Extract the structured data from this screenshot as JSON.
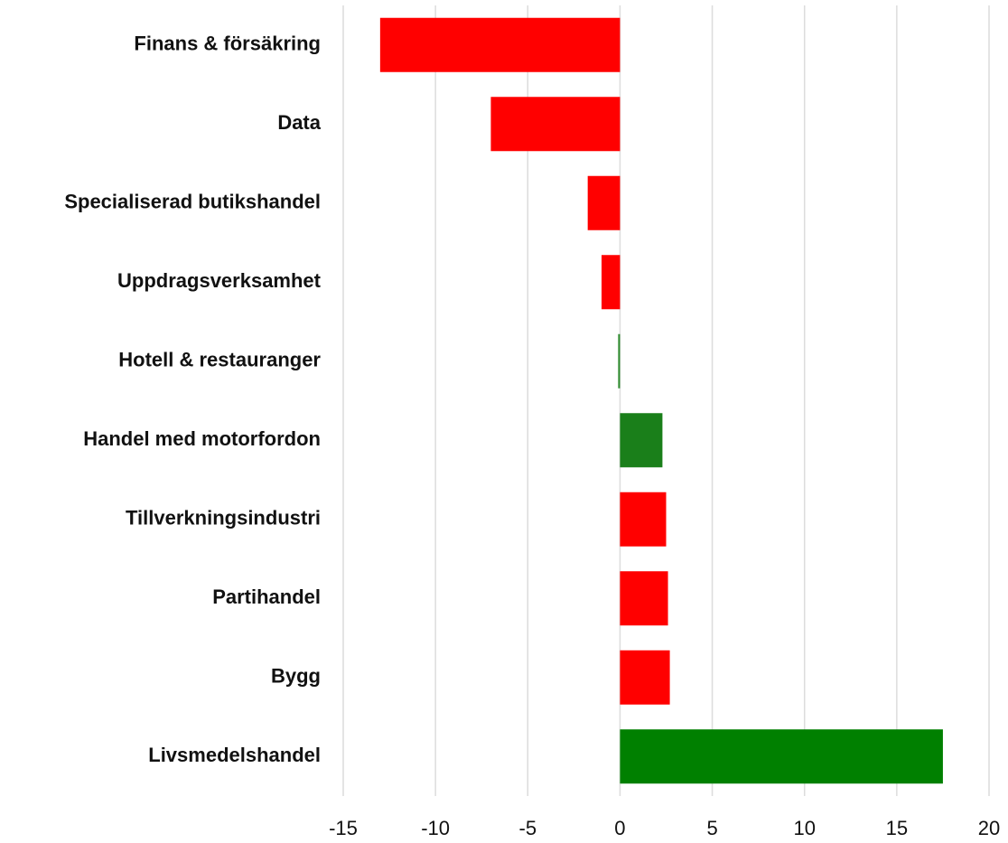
{
  "chart_data": {
    "type": "barh",
    "categories": [
      "Finans & försäkring",
      "Data",
      "Specialiserad butikshandel",
      "Uppdragsverksamhet",
      "Hotell & restauranger",
      "Handel med motorfordon",
      "Tillverkningsindustri",
      "Partihandel",
      "Bygg",
      "Livsmedelshandel"
    ],
    "values": [
      -13,
      -7,
      -1.75,
      -1,
      -0.1,
      2.3,
      2.5,
      2.6,
      2.7,
      17.5
    ],
    "colors": [
      "#ff0000",
      "#ff0000",
      "#ff0000",
      "#ff0000",
      "#2e8b2e",
      "#1a7f1a",
      "#ff0000",
      "#ff0000",
      "#ff0000",
      "#008000"
    ],
    "xlim": [
      -15,
      20
    ],
    "xticks": [
      -15,
      -10,
      -5,
      0,
      5,
      10,
      15,
      20
    ],
    "grid": true
  }
}
